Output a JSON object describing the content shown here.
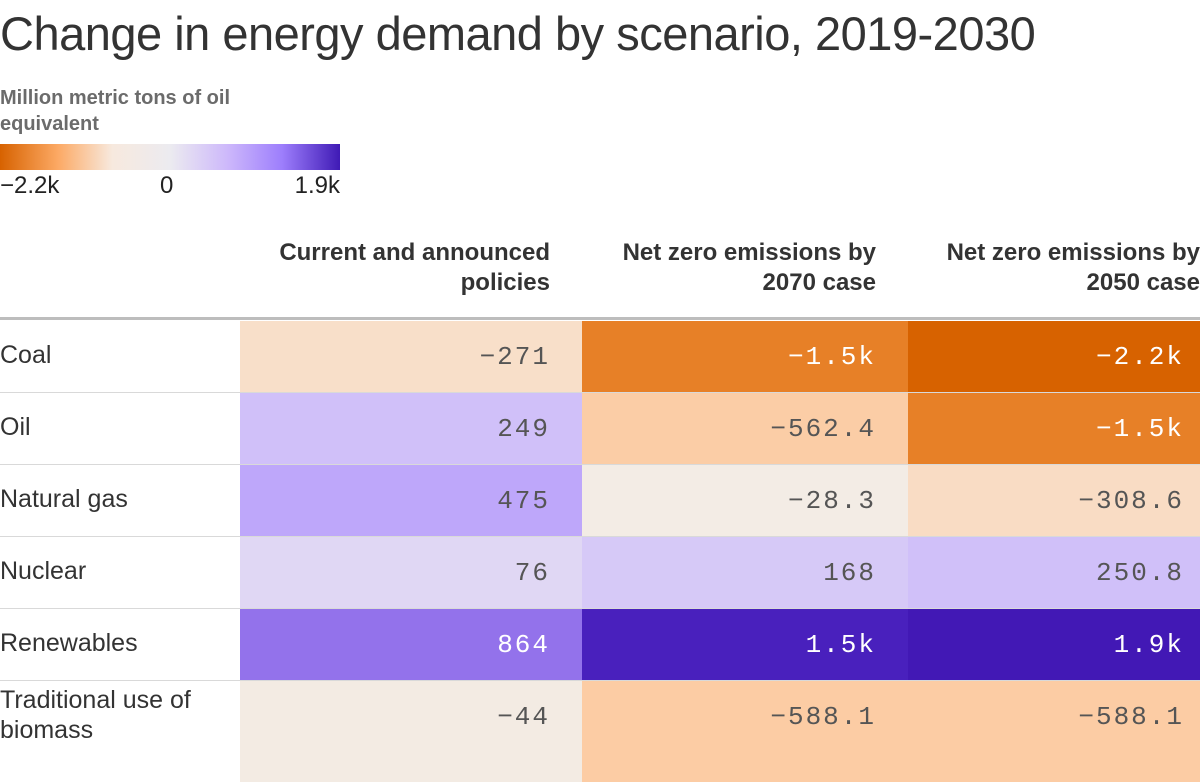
{
  "title": "Change in energy demand by scenario, 2019-2030",
  "legend": {
    "title": "Million metric tons of oil equivalent",
    "min_label": "−2.2k",
    "zero_label": "0",
    "max_label": "1.9k",
    "colors": [
      "#d76200",
      "#fca964",
      "#f7e9de",
      "#ecebf0",
      "#cdb8fb",
      "#9d7efc",
      "#3f1ab5"
    ]
  },
  "chart_data": {
    "type": "table",
    "title": "Change in energy demand by scenario, 2019-2030",
    "unit": "Million metric tons of oil equivalent",
    "columns": [
      "Current and announced policies",
      "Net zero emissions by 2070 case",
      "Net zero emissions by 2050 case"
    ],
    "rows": [
      {
        "label": "Coal",
        "values": [
          -271,
          -1500,
          -2200
        ],
        "display": [
          "−271",
          "−1.5k",
          "−2.2k"
        ]
      },
      {
        "label": "Oil",
        "values": [
          249,
          -562.4,
          -1500
        ],
        "display": [
          "249",
          "−562.4",
          "−1.5k"
        ]
      },
      {
        "label": "Natural gas",
        "values": [
          475,
          -28.3,
          -308.6
        ],
        "display": [
          "475",
          "−28.3",
          "−308.6"
        ]
      },
      {
        "label": "Nuclear",
        "values": [
          76,
          168,
          250.8
        ],
        "display": [
          "76",
          "168",
          "250.8"
        ]
      },
      {
        "label": "Renewables",
        "values": [
          864,
          1500,
          1900
        ],
        "display": [
          "864",
          "1.5k",
          "1.9k"
        ]
      },
      {
        "label": "Traditional use of biomass",
        "values": [
          -44,
          -588.1,
          -588.1
        ],
        "display": [
          "−44",
          "−588.1",
          "−588.1"
        ]
      }
    ],
    "color_domain": [
      -2200,
      1900
    ]
  }
}
